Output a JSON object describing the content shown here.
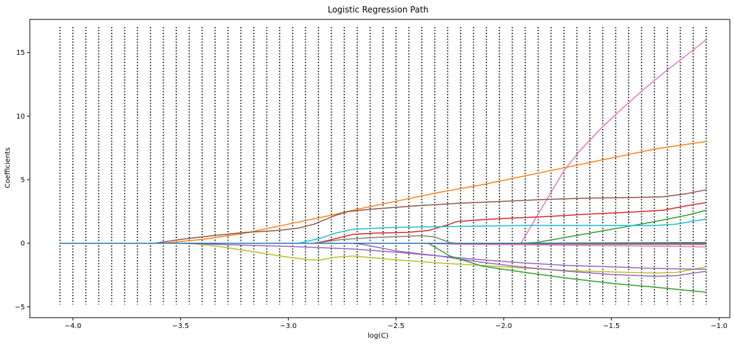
{
  "chart_data": {
    "type": "line",
    "title": "Logistic Regression Path",
    "xlabel": "log(C)",
    "ylabel": "Coefficients",
    "xlim": [
      -4.2,
      -0.95
    ],
    "ylim": [
      -5.85,
      17.6
    ],
    "xticks": [
      -4.0,
      -3.5,
      -3.0,
      -2.5,
      -2.0,
      -1.5,
      -1.0
    ],
    "xtick_labels": [
      "−4.0",
      "−3.5",
      "−3.0",
      "−2.5",
      "−2.0",
      "−1.5",
      "−1.0"
    ],
    "yticks": [
      -5,
      0,
      5,
      10,
      15
    ],
    "ytick_labels": [
      "−5",
      "0",
      "5",
      "10",
      "15"
    ],
    "grid": false,
    "legend": "none",
    "vlines": {
      "from": -4.06,
      "to": -1.06,
      "count": 51,
      "ymin": -4.8,
      "ymax": 17.0,
      "color": "#000000",
      "style": "dotted"
    },
    "series": [
      {
        "color": "#e377c2",
        "points": [
          [
            -4.06,
            0
          ],
          [
            -1.92,
            0
          ],
          [
            -1.85,
            2.0
          ],
          [
            -1.78,
            4.0
          ],
          [
            -1.72,
            5.7
          ],
          [
            -1.65,
            7.2
          ],
          [
            -1.55,
            9.0
          ],
          [
            -1.45,
            10.6
          ],
          [
            -1.35,
            12.1
          ],
          [
            -1.25,
            13.5
          ],
          [
            -1.15,
            14.8
          ],
          [
            -1.06,
            16.0
          ]
        ]
      },
      {
        "color": "#ff7f0e",
        "points": [
          [
            -4.06,
            0
          ],
          [
            -3.58,
            0
          ],
          [
            -3.4,
            0.3
          ],
          [
            -3.2,
            0.8
          ],
          [
            -3.0,
            1.5
          ],
          [
            -2.8,
            2.2
          ],
          [
            -2.7,
            2.6
          ],
          [
            -2.5,
            3.3
          ],
          [
            -2.3,
            4.0
          ],
          [
            -2.1,
            4.6
          ],
          [
            -1.9,
            5.3
          ],
          [
            -1.7,
            6.0
          ],
          [
            -1.5,
            6.7
          ],
          [
            -1.3,
            7.4
          ],
          [
            -1.06,
            8.0
          ]
        ]
      },
      {
        "color": "#8c564b",
        "points": [
          [
            -4.06,
            0
          ],
          [
            -3.62,
            0
          ],
          [
            -3.5,
            0.3
          ],
          [
            -3.35,
            0.6
          ],
          [
            -3.2,
            0.85
          ],
          [
            -3.05,
            1.0
          ],
          [
            -2.95,
            1.2
          ],
          [
            -2.88,
            1.5
          ],
          [
            -2.78,
            2.2
          ],
          [
            -2.72,
            2.5
          ],
          [
            -2.6,
            2.7
          ],
          [
            -2.4,
            2.95
          ],
          [
            -2.2,
            3.15
          ],
          [
            -2.0,
            3.3
          ],
          [
            -1.8,
            3.45
          ],
          [
            -1.6,
            3.55
          ],
          [
            -1.4,
            3.6
          ],
          [
            -1.26,
            3.65
          ],
          [
            -1.15,
            3.9
          ],
          [
            -1.06,
            4.2
          ]
        ]
      },
      {
        "color": "#d62728",
        "points": [
          [
            -4.06,
            0
          ],
          [
            -2.88,
            0
          ],
          [
            -2.82,
            0.2
          ],
          [
            -2.75,
            0.5
          ],
          [
            -2.7,
            0.7
          ],
          [
            -2.6,
            0.8
          ],
          [
            -2.45,
            0.85
          ],
          [
            -2.35,
            1.0
          ],
          [
            -2.25,
            1.5
          ],
          [
            -2.22,
            1.7
          ],
          [
            -2.1,
            1.85
          ],
          [
            -2.0,
            1.95
          ],
          [
            -1.8,
            2.1
          ],
          [
            -1.6,
            2.3
          ],
          [
            -1.4,
            2.45
          ],
          [
            -1.26,
            2.6
          ],
          [
            -1.15,
            2.95
          ],
          [
            -1.06,
            3.2
          ]
        ]
      },
      {
        "color": "#2ca02c",
        "points": [
          [
            -4.06,
            0
          ],
          [
            -1.92,
            0
          ],
          [
            -1.85,
            0.05
          ],
          [
            -1.7,
            0.5
          ],
          [
            -1.5,
            1.1
          ],
          [
            -1.3,
            1.7
          ],
          [
            -1.15,
            2.2
          ],
          [
            -1.06,
            2.6
          ]
        ]
      },
      {
        "color": "#17becf",
        "points": [
          [
            -4.06,
            0
          ],
          [
            -2.95,
            0
          ],
          [
            -2.85,
            0.4
          ],
          [
            -2.78,
            0.8
          ],
          [
            -2.7,
            1.1
          ],
          [
            -2.5,
            1.25
          ],
          [
            -2.3,
            1.3
          ],
          [
            -2.1,
            1.35
          ],
          [
            -1.9,
            1.4
          ],
          [
            -1.6,
            1.4
          ],
          [
            -1.3,
            1.4
          ],
          [
            -1.2,
            1.5
          ],
          [
            -1.06,
            1.9
          ]
        ]
      },
      {
        "color": "#7f7f7f",
        "points": [
          [
            -4.06,
            0
          ],
          [
            -2.88,
            0
          ],
          [
            -2.75,
            0.3
          ],
          [
            -2.6,
            0.45
          ],
          [
            -2.45,
            0.55
          ],
          [
            -2.38,
            0.6
          ],
          [
            -2.32,
            0.5
          ],
          [
            -2.25,
            0.05
          ],
          [
            -2.2,
            -0.05
          ],
          [
            -1.06,
            -0.1
          ]
        ]
      },
      {
        "color": "#bcbd22",
        "points": [
          [
            -4.06,
            0
          ],
          [
            -3.45,
            0
          ],
          [
            -3.3,
            -0.3
          ],
          [
            -3.15,
            -0.7
          ],
          [
            -3.0,
            -1.1
          ],
          [
            -2.9,
            -1.3
          ],
          [
            -2.85,
            -1.3
          ],
          [
            -2.78,
            -1.1
          ],
          [
            -2.7,
            -1.0
          ],
          [
            -2.5,
            -1.3
          ],
          [
            -2.3,
            -1.55
          ],
          [
            -2.1,
            -1.75
          ],
          [
            -1.9,
            -1.95
          ],
          [
            -1.7,
            -2.15
          ],
          [
            -1.5,
            -2.25
          ],
          [
            -1.3,
            -2.35
          ],
          [
            -1.2,
            -2.3
          ],
          [
            -1.06,
            -1.85
          ]
        ]
      },
      {
        "color": "#9467bd",
        "points": [
          [
            -4.06,
            0
          ],
          [
            -3.5,
            0
          ],
          [
            -3.3,
            -0.1
          ],
          [
            -3.0,
            -0.25
          ],
          [
            -2.7,
            -0.45
          ],
          [
            -2.5,
            -0.7
          ],
          [
            -2.3,
            -1.0
          ],
          [
            -2.1,
            -1.3
          ],
          [
            -1.9,
            -1.55
          ],
          [
            -1.7,
            -1.75
          ],
          [
            -1.5,
            -1.85
          ],
          [
            -1.35,
            -1.95
          ],
          [
            -1.25,
            -2.0
          ],
          [
            -1.06,
            -2.05
          ]
        ]
      },
      {
        "color": "#9467bd",
        "points": [
          [
            -4.06,
            0
          ],
          [
            -2.7,
            0
          ],
          [
            -2.65,
            -0.1
          ],
          [
            -2.5,
            -0.6
          ],
          [
            -2.3,
            -1.0
          ],
          [
            -2.1,
            -1.5
          ],
          [
            -1.9,
            -1.9
          ],
          [
            -1.7,
            -2.2
          ],
          [
            -1.5,
            -2.45
          ],
          [
            -1.3,
            -2.6
          ],
          [
            -1.2,
            -2.55
          ],
          [
            -1.06,
            -2.2
          ]
        ]
      },
      {
        "color": "#2ca02c",
        "points": [
          [
            -4.06,
            0
          ],
          [
            -2.35,
            0
          ],
          [
            -2.3,
            -0.5
          ],
          [
            -2.25,
            -1.0
          ],
          [
            -2.1,
            -1.8
          ],
          [
            -1.9,
            -2.3
          ],
          [
            -1.7,
            -2.75
          ],
          [
            -1.5,
            -3.15
          ],
          [
            -1.3,
            -3.45
          ],
          [
            -1.15,
            -3.7
          ],
          [
            -1.06,
            -3.85
          ]
        ]
      },
      {
        "color": "#e377c2",
        "points": [
          [
            -4.06,
            0
          ],
          [
            -2.4,
            0
          ],
          [
            -2.2,
            -0.08
          ],
          [
            -1.9,
            -0.12
          ],
          [
            -1.6,
            -0.18
          ],
          [
            -1.3,
            -0.22
          ],
          [
            -1.06,
            -0.3
          ]
        ]
      },
      {
        "color": "#8c564b",
        "points": [
          [
            -4.06,
            0
          ],
          [
            -2.0,
            0
          ],
          [
            -1.06,
            0.05
          ]
        ]
      },
      {
        "color": "#ff7f0e",
        "points": [
          [
            -4.06,
            0
          ],
          [
            -2.3,
            0
          ],
          [
            -1.06,
            -0.05
          ]
        ]
      },
      {
        "color": "#1f77b4",
        "points": [
          [
            -4.06,
            0
          ],
          [
            -1.06,
            0
          ]
        ]
      }
    ]
  }
}
